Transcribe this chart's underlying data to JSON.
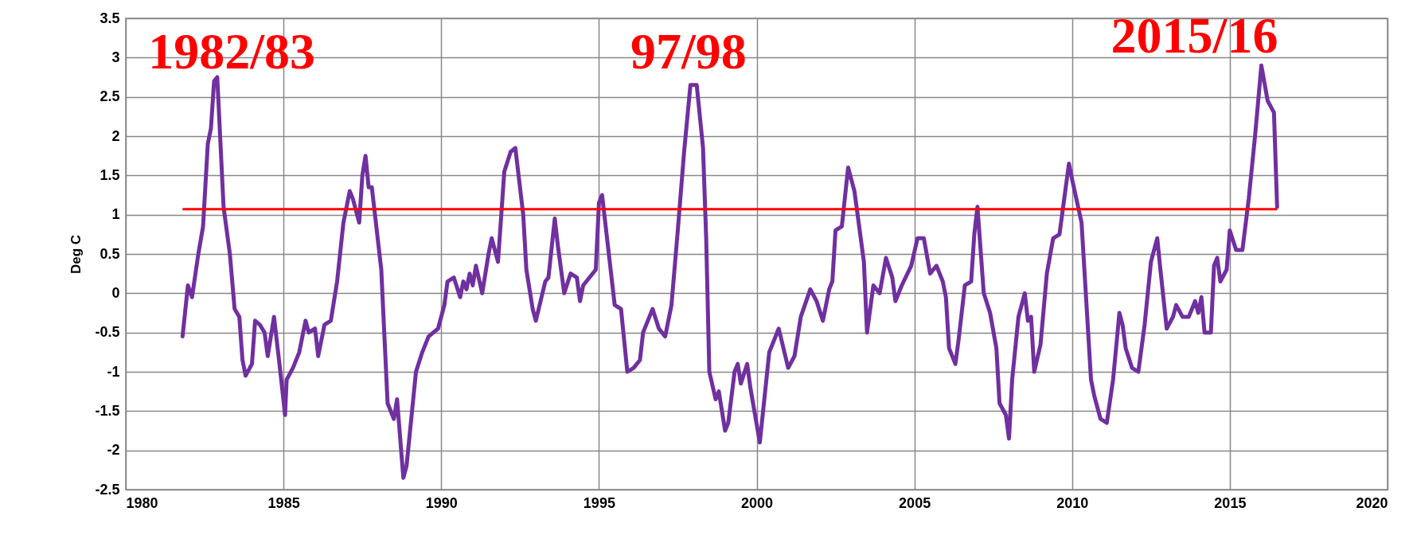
{
  "chart_data": {
    "type": "line",
    "ylabel": "Deg C",
    "xlim": [
      1980,
      2020
    ],
    "xticks": [
      1980,
      1985,
      1990,
      1995,
      2000,
      2005,
      2010,
      2015,
      2020
    ],
    "ylim": [
      -2.5,
      3.5
    ],
    "yticks": [
      -2.5,
      -2,
      -1.5,
      -1,
      -0.5,
      0,
      0.5,
      1,
      1.5,
      2,
      2.5,
      3,
      3.5
    ],
    "grid": true,
    "series": [
      {
        "color": "#7030a0",
        "x": [
          1981.8,
          1981.97,
          1982.1,
          1982.3,
          1982.45,
          1982.6,
          1982.7,
          1982.8,
          1982.9,
          1983.1,
          1983.3,
          1983.45,
          1983.6,
          1983.7,
          1983.8,
          1984.0,
          1984.1,
          1984.25,
          1984.4,
          1984.5,
          1984.7,
          1984.9,
          1985.05,
          1985.1,
          1985.3,
          1985.5,
          1985.7,
          1985.8,
          1986.0,
          1986.1,
          1986.3,
          1986.5,
          1986.7,
          1986.9,
          1987.1,
          1987.2,
          1987.4,
          1987.5,
          1987.6,
          1987.7,
          1987.8,
          1988.1,
          1988.3,
          1988.5,
          1988.6,
          1988.8,
          1988.9,
          1989.1,
          1989.2,
          1989.4,
          1989.6,
          1989.9,
          1990.1,
          1990.2,
          1990.4,
          1990.6,
          1990.7,
          1990.8,
          1990.9,
          1991.0,
          1991.1,
          1991.3,
          1991.5,
          1991.6,
          1991.8,
          1992.0,
          1992.2,
          1992.35,
          1992.6,
          1992.7,
          1992.9,
          1993.0,
          1993.3,
          1993.4,
          1993.6,
          1993.7,
          1993.9,
          1994.1,
          1994.3,
          1994.4,
          1994.5,
          1994.9,
          1995.0,
          1995.1,
          1995.4,
          1995.5,
          1995.7,
          1995.9,
          1996.1,
          1996.3,
          1996.4,
          1996.7,
          1996.9,
          1997.1,
          1997.3,
          1997.5,
          1997.7,
          1997.9,
          1998.1,
          1998.3,
          1998.4,
          1998.5,
          1998.7,
          1998.8,
          1999.0,
          1999.1,
          1999.3,
          1999.4,
          1999.5,
          1999.7,
          1999.8,
          2000.1,
          2000.4,
          2000.7,
          2001.0,
          2001.2,
          2001.4,
          2001.7,
          2001.9,
          2002.1,
          2002.3,
          2002.4,
          2002.5,
          2002.7,
          2002.9,
          2003.1,
          2003.4,
          2003.5,
          2003.7,
          2003.9,
          2004.1,
          2004.3,
          2004.4,
          2004.6,
          2004.9,
          2005.1,
          2005.3,
          2005.5,
          2005.7,
          2005.9,
          2006.0,
          2006.1,
          2006.3,
          2006.4,
          2006.6,
          2006.8,
          2006.9,
          2007.0,
          2007.2,
          2007.4,
          2007.6,
          2007.7,
          2007.9,
          2008.0,
          2008.1,
          2008.3,
          2008.5,
          2008.6,
          2008.7,
          2008.8,
          2009.0,
          2009.2,
          2009.4,
          2009.6,
          2009.9,
          2010.0,
          2010.3,
          2010.6,
          2010.7,
          2010.9,
          2011.1,
          2011.3,
          2011.5,
          2011.6,
          2011.7,
          2011.9,
          2012.1,
          2012.3,
          2012.5,
          2012.7,
          2012.8,
          2013.0,
          2013.2,
          2013.3,
          2013.5,
          2013.7,
          2013.9,
          2014.0,
          2014.1,
          2014.2,
          2014.4,
          2014.5,
          2014.6,
          2014.7,
          2014.9,
          2015.0,
          2015.2,
          2015.4,
          2015.6,
          2015.8,
          2016.0,
          2016.2,
          2016.4,
          2016.5
        ],
        "values": [
          -0.55,
          0.1,
          -0.05,
          0.5,
          0.85,
          1.9,
          2.1,
          2.7,
          2.75,
          1.1,
          0.5,
          -0.2,
          -0.3,
          -0.85,
          -1.05,
          -0.9,
          -0.35,
          -0.4,
          -0.5,
          -0.8,
          -0.3,
          -1.0,
          -1.55,
          -1.1,
          -0.95,
          -0.75,
          -0.35,
          -0.5,
          -0.45,
          -0.8,
          -0.4,
          -0.35,
          0.15,
          0.9,
          1.3,
          1.2,
          0.9,
          1.5,
          1.75,
          1.35,
          1.35,
          0.3,
          -1.4,
          -1.6,
          -1.35,
          -2.35,
          -2.2,
          -1.4,
          -1.0,
          -0.75,
          -0.55,
          -0.45,
          -0.15,
          0.15,
          0.2,
          -0.05,
          0.15,
          0.05,
          0.25,
          0.1,
          0.35,
          0.0,
          0.5,
          0.7,
          0.4,
          1.55,
          1.8,
          1.85,
          1.0,
          0.3,
          -0.2,
          -0.35,
          0.15,
          0.2,
          0.95,
          0.6,
          0.0,
          0.25,
          0.2,
          -0.1,
          0.1,
          0.3,
          1.15,
          1.25,
          0.2,
          -0.15,
          -0.2,
          -1.0,
          -0.95,
          -0.85,
          -0.5,
          -0.2,
          -0.45,
          -0.55,
          -0.15,
          0.8,
          1.8,
          2.65,
          2.65,
          1.85,
          0.7,
          -1.0,
          -1.35,
          -1.25,
          -1.75,
          -1.65,
          -1.0,
          -0.9,
          -1.15,
          -0.9,
          -1.2,
          -1.9,
          -0.75,
          -0.45,
          -0.95,
          -0.8,
          -0.3,
          0.05,
          -0.1,
          -0.35,
          0.05,
          0.15,
          0.8,
          0.85,
          1.6,
          1.3,
          0.4,
          -0.5,
          0.1,
          0.0,
          0.45,
          0.2,
          -0.1,
          0.1,
          0.35,
          0.7,
          0.7,
          0.25,
          0.35,
          0.15,
          -0.05,
          -0.7,
          -0.9,
          -0.6,
          0.1,
          0.15,
          0.75,
          1.1,
          0.0,
          -0.25,
          -0.7,
          -1.4,
          -1.55,
          -1.85,
          -1.1,
          -0.3,
          0.0,
          -0.35,
          -0.3,
          -1.0,
          -0.65,
          0.25,
          0.7,
          0.75,
          1.65,
          1.45,
          0.9,
          -1.1,
          -1.3,
          -1.6,
          -1.65,
          -1.1,
          -0.25,
          -0.4,
          -0.7,
          -0.95,
          -1.0,
          -0.4,
          0.4,
          0.7,
          0.3,
          -0.45,
          -0.3,
          -0.15,
          -0.3,
          -0.3,
          -0.1,
          -0.25,
          -0.05,
          -0.5,
          -0.5,
          0.35,
          0.45,
          0.15,
          0.3,
          0.8,
          0.55,
          0.55,
          1.2,
          2.0,
          2.9,
          2.45,
          2.3,
          1.1
        ]
      }
    ],
    "ref_lines": [
      {
        "axis": "y",
        "value": 1.07,
        "color": "#ff0000"
      }
    ],
    "annotations": [
      "1982/83",
      "97/98",
      "2015/16"
    ]
  }
}
